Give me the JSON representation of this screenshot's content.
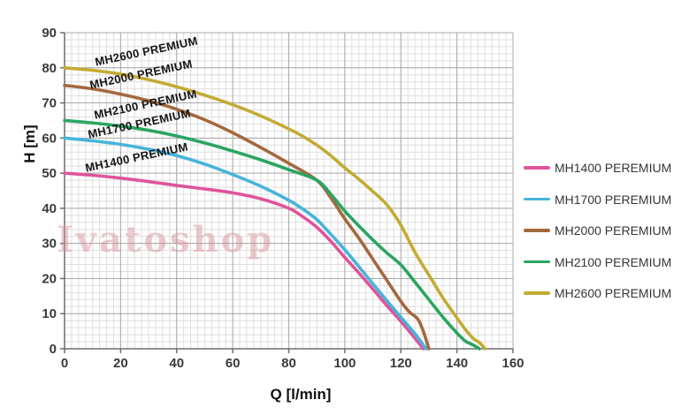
{
  "chart": {
    "watermark": "Ivatoshop"
  },
  "chart_data": {
    "type": "line",
    "title": "",
    "xlabel": "Q [l/min]",
    "ylabel": "H [m]",
    "xlim": [
      0,
      160
    ],
    "ylim": [
      0,
      90
    ],
    "x_ticks": [
      0,
      20,
      40,
      60,
      80,
      100,
      120,
      140,
      160
    ],
    "y_ticks": [
      0,
      10,
      20,
      30,
      40,
      50,
      60,
      70,
      80,
      90
    ],
    "grid": {
      "minor_x": 2.5,
      "minor_y": 2,
      "major_x": 20,
      "major_y": 10
    },
    "legend_position": "right",
    "colors": {
      "grid_minor": "#dedede",
      "grid_major": "#a9a9a9",
      "axis": "#6e6e6e",
      "tick_label": "#3a3a3a"
    },
    "series": [
      {
        "name": "MH1400 PEREMIUM",
        "curve_label": "MH1400 PREMIUM",
        "color": "#df549b",
        "points": [
          [
            0,
            50
          ],
          [
            10,
            49.4
          ],
          [
            20,
            48.6
          ],
          [
            30,
            47.6
          ],
          [
            40,
            46.5
          ],
          [
            50,
            45.5
          ],
          [
            60,
            44.4
          ],
          [
            70,
            42.7
          ],
          [
            80,
            40
          ],
          [
            85,
            37.6
          ],
          [
            90,
            34.6
          ],
          [
            95,
            30.6
          ],
          [
            100,
            26
          ],
          [
            105,
            21.6
          ],
          [
            110,
            17
          ],
          [
            115,
            12.3
          ],
          [
            120,
            7.8
          ],
          [
            124,
            4
          ],
          [
            128,
            0
          ]
        ]
      },
      {
        "name": "MH1700 PEREMIUM",
        "curve_label": "MH1700 PREMIUM",
        "color": "#47b4d9",
        "points": [
          [
            0,
            60
          ],
          [
            10,
            59.2
          ],
          [
            20,
            58.2
          ],
          [
            30,
            56.8
          ],
          [
            40,
            55
          ],
          [
            50,
            52.6
          ],
          [
            60,
            49.6
          ],
          [
            70,
            46.3
          ],
          [
            80,
            42.3
          ],
          [
            85,
            39.8
          ],
          [
            90,
            36.8
          ],
          [
            95,
            32.6
          ],
          [
            100,
            28.2
          ],
          [
            105,
            23.4
          ],
          [
            110,
            18.5
          ],
          [
            115,
            13.7
          ],
          [
            120,
            9
          ],
          [
            125,
            4.3
          ],
          [
            129,
            0
          ]
        ]
      },
      {
        "name": "MH2000 PEREMIUM",
        "curve_label": "MH2000 PREMIUM",
        "color": "#a4683e",
        "points": [
          [
            0,
            75
          ],
          [
            10,
            74
          ],
          [
            20,
            72.5
          ],
          [
            30,
            70.6
          ],
          [
            40,
            68.2
          ],
          [
            50,
            65.2
          ],
          [
            60,
            61.5
          ],
          [
            70,
            57.3
          ],
          [
            80,
            52.8
          ],
          [
            90,
            48
          ],
          [
            95,
            43
          ],
          [
            100,
            37
          ],
          [
            105,
            31.5
          ],
          [
            110,
            25.5
          ],
          [
            115,
            19.5
          ],
          [
            120,
            13.5
          ],
          [
            123,
            10.5
          ],
          [
            126,
            8.5
          ],
          [
            128,
            5
          ],
          [
            130,
            0
          ]
        ]
      },
      {
        "name": "MH2100 PEREMIUM",
        "curve_label": "MH2100 PREMIUM",
        "color": "#2ba562",
        "points": [
          [
            0,
            65
          ],
          [
            10,
            64.3
          ],
          [
            20,
            63.4
          ],
          [
            30,
            62.2
          ],
          [
            40,
            60.6
          ],
          [
            50,
            58.6
          ],
          [
            60,
            56.3
          ],
          [
            70,
            53.8
          ],
          [
            80,
            51
          ],
          [
            90,
            48
          ],
          [
            95,
            44
          ],
          [
            100,
            39.2
          ],
          [
            105,
            35
          ],
          [
            110,
            31
          ],
          [
            115,
            27.3
          ],
          [
            120,
            23.9
          ],
          [
            125,
            19
          ],
          [
            130,
            14
          ],
          [
            135,
            9
          ],
          [
            140,
            4.5
          ],
          [
            143,
            2.2
          ],
          [
            146,
            1
          ],
          [
            148,
            0
          ]
        ]
      },
      {
        "name": "MH2600 PEREMIUM",
        "curve_label": "MH2600 PREMIUM",
        "color": "#c3ab34",
        "points": [
          [
            0,
            80
          ],
          [
            10,
            79.3
          ],
          [
            20,
            78.2
          ],
          [
            30,
            76.6
          ],
          [
            40,
            74.6
          ],
          [
            50,
            72.2
          ],
          [
            60,
            69.5
          ],
          [
            70,
            66.3
          ],
          [
            80,
            62.6
          ],
          [
            85,
            60.5
          ],
          [
            90,
            58
          ],
          [
            95,
            55
          ],
          [
            100,
            51.5
          ],
          [
            105,
            48.3
          ],
          [
            110,
            44.8
          ],
          [
            115,
            41
          ],
          [
            120,
            35.2
          ],
          [
            125,
            27.5
          ],
          [
            130,
            21
          ],
          [
            135,
            14.5
          ],
          [
            140,
            8.8
          ],
          [
            143,
            5.5
          ],
          [
            146,
            2.8
          ],
          [
            148,
            1.8
          ],
          [
            150,
            0
          ]
        ]
      }
    ]
  }
}
